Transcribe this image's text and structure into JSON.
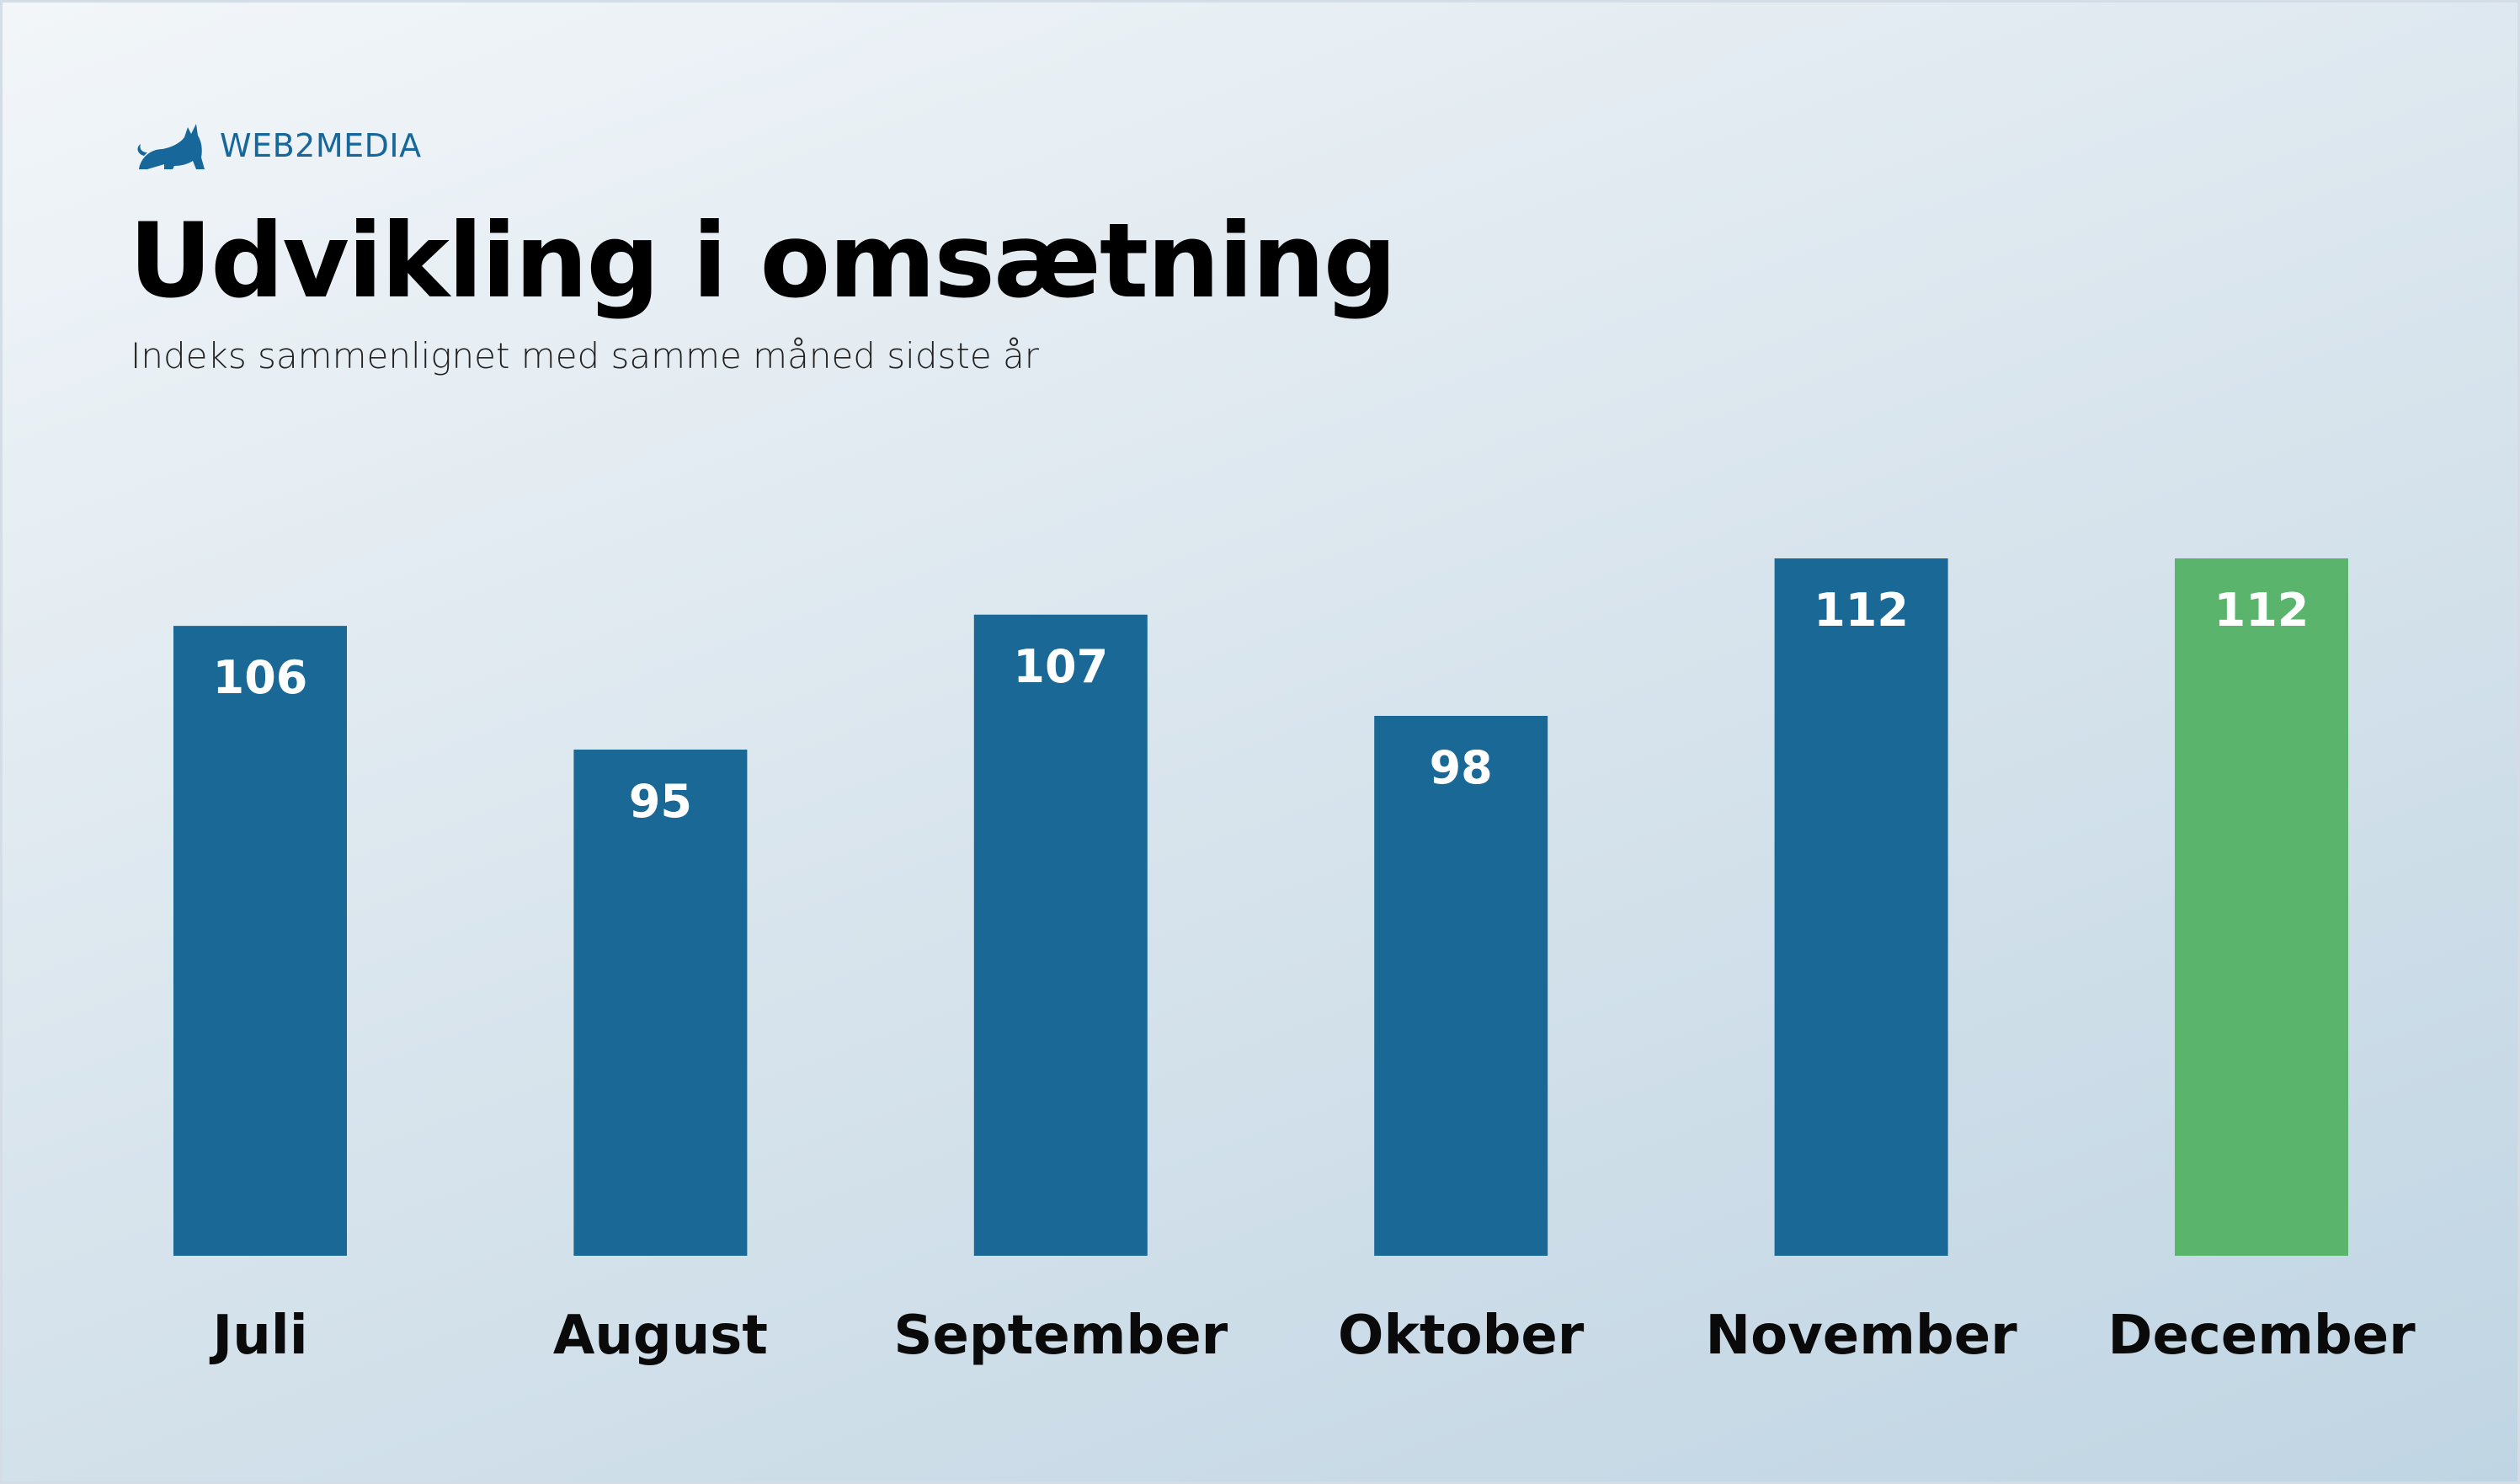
{
  "brand": {
    "name": "WEB2MEDIA",
    "logo_icon": "cat-icon",
    "color": "#17679a"
  },
  "chart_data": {
    "type": "bar",
    "title": "Udvikling i omsætning",
    "subtitle": "Indeks sammenlignet med samme måned sidste år",
    "xlabel": "",
    "ylabel": "",
    "categories": [
      "Juli",
      "August",
      "September",
      "Oktober",
      "November",
      "December"
    ],
    "values": [
      106,
      95,
      107,
      98,
      112,
      112
    ],
    "data_labels": [
      "106",
      "95",
      "107",
      "98",
      "112",
      "112"
    ],
    "ylim": [
      50,
      112
    ],
    "grid": false,
    "legend": "none",
    "colors": [
      "#196895",
      "#196895",
      "#196895",
      "#196895",
      "#196895",
      "#5ab46c"
    ]
  }
}
